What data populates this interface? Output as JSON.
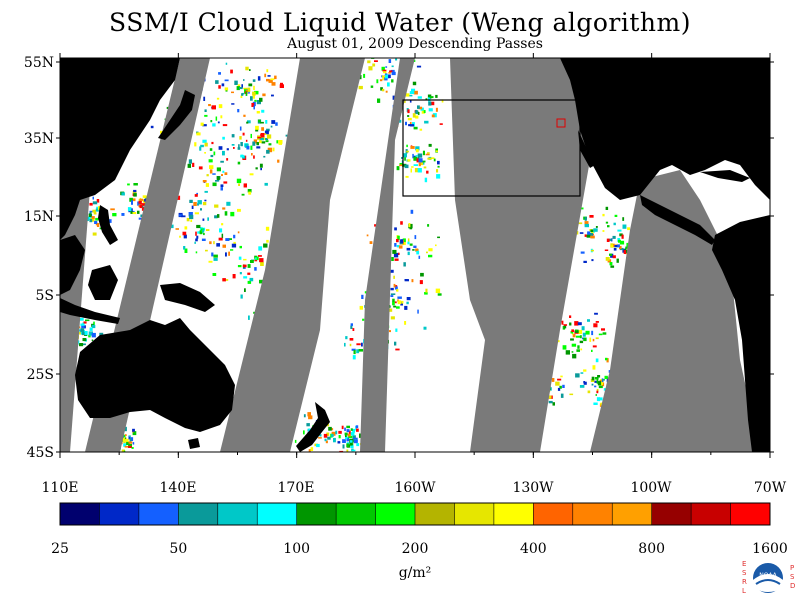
{
  "header": {
    "title": "SSM/I Cloud Liquid Water (Weng algorithm)",
    "subtitle": "August 01, 2009  Descending Passes"
  },
  "map": {
    "lat_labels": [
      "55N",
      "35N",
      "15N",
      "5S",
      "25S",
      "45S"
    ],
    "lon_labels": [
      "110E",
      "140E",
      "170E",
      "160W",
      "130W",
      "100W",
      "70W"
    ],
    "colors": {
      "land": "#000000",
      "no_data": "#7a7a7a",
      "ocean_clear": "#ffffff",
      "box": "#000000",
      "marker": "#e00000"
    }
  },
  "colorbar": {
    "unit": "g/m²",
    "tick_labels": [
      "25",
      "50",
      "100",
      "200",
      "400",
      "800",
      "1600"
    ],
    "colors": [
      "#00006e",
      "#0028c8",
      "#1460ff",
      "#0a9a9a",
      "#00c8c8",
      "#00ffff",
      "#009600",
      "#00c800",
      "#00ff00",
      "#b4b400",
      "#e6e600",
      "#ffff00",
      "#ff6400",
      "#ff8200",
      "#ffa000",
      "#960000",
      "#c80000",
      "#ff0000"
    ]
  },
  "logo": {
    "left_text": "ESRL",
    "right_text": "PSD",
    "center_text": "NOAA"
  }
}
